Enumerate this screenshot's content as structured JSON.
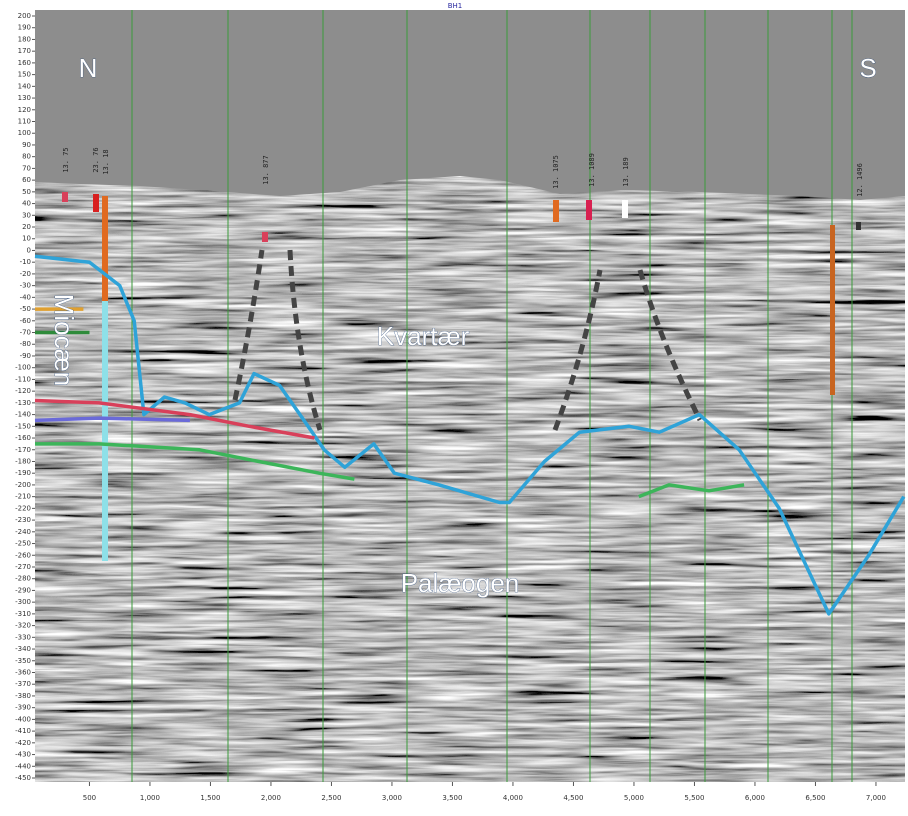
{
  "chart_data": {
    "type": "line",
    "title": "BH1",
    "xlim": [
      50,
      7240
    ],
    "ylim": [
      -450,
      200
    ],
    "xticks": [
      500,
      {
        "value": 1000,
        "label": "1,000"
      },
      {
        "value": 1500,
        "label": "1,500"
      },
      {
        "value": 2000,
        "label": "2,000"
      },
      {
        "value": 2500,
        "label": "2,500"
      },
      {
        "value": 3000,
        "label": "3,000"
      },
      {
        "value": 3500,
        "label": "3,500"
      },
      {
        "value": 4000,
        "label": "4,000"
      },
      {
        "value": 4500,
        "label": "4,500"
      },
      {
        "value": 5000,
        "label": "5,000"
      },
      {
        "value": 5500,
        "label": "5,500"
      },
      {
        "value": 6000,
        "label": "6,000"
      },
      {
        "value": 6500,
        "label": "6,500"
      },
      {
        "value": 7000,
        "label": "7,000"
      }
    ],
    "yticks": [
      200,
      190,
      180,
      170,
      160,
      150,
      140,
      130,
      120,
      110,
      100,
      90,
      80,
      70,
      60,
      50,
      40,
      30,
      20,
      10,
      0,
      -10,
      -20,
      -30,
      -40,
      -50,
      -60,
      -70,
      -80,
      -90,
      -100,
      -110,
      -120,
      -130,
      -140,
      -150,
      -160,
      -170,
      -180,
      -190,
      -200,
      -210,
      -220,
      -230,
      -240,
      -250,
      -260,
      -270,
      -280,
      -290,
      -300,
      -310,
      -320,
      -330,
      -340,
      -350,
      -360,
      -370,
      -380,
      -390,
      -400,
      -410,
      -420,
      -430,
      -440,
      -450
    ],
    "series": [
      {
        "color": "#2fa3d8",
        "x": [
          50,
          500,
          750,
          870,
          950,
          1120,
          1290,
          1490,
          1740,
          1860,
          2070,
          2240,
          2440,
          2610,
          2850,
          3020,
          3390,
          3890,
          3970,
          4260,
          4550,
          4960,
          5210,
          5540,
          5870,
          6200,
          6610,
          6940,
          7230
        ],
        "values": [
          -5,
          -10,
          -30,
          -60,
          -140,
          -125,
          -130,
          -140,
          -130,
          -105,
          -115,
          -140,
          -170,
          -185,
          -165,
          -190,
          -200,
          -215,
          -215,
          -180,
          -155,
          -150,
          -155,
          -140,
          -170,
          -220,
          -310,
          -260,
          -210
        ]
      },
      {
        "color": "#3cb55a",
        "x": [
          50,
          580,
          1410,
          1900,
          2400,
          2690,
          4550,
          5040,
          5290,
          5620,
          5910
        ],
        "values": [
          -165,
          -165,
          -170,
          -180,
          -190,
          -195,
          null,
          -210,
          -200,
          -205,
          -200
        ]
      },
      {
        "color": "#d8405a",
        "x": [
          50,
          580,
          1330,
          1820,
          2360
        ],
        "values": [
          -128,
          -130,
          -140,
          -150,
          -160
        ]
      },
      {
        "color": "#6a6ad8",
        "x": [
          50,
          580,
          1330
        ],
        "values": [
          -145,
          -143,
          -145
        ]
      },
      {
        "color": "#e0a030",
        "x": [
          50,
          450
        ],
        "values": [
          -50,
          -50
        ]
      },
      {
        "color": "#2e8b3a",
        "x": [
          50,
          500
        ],
        "values": [
          -70,
          -70
        ]
      }
    ],
    "annotations": [
      "N",
      "S",
      "Kvartær",
      "Miocæn",
      "Palæogen"
    ],
    "borehole_labels": [
      "13. 75",
      "23. 76",
      "13. 18",
      "13. 877",
      "13. 1075",
      "13. 1089",
      "13. 189",
      "12. 1496"
    ]
  }
}
